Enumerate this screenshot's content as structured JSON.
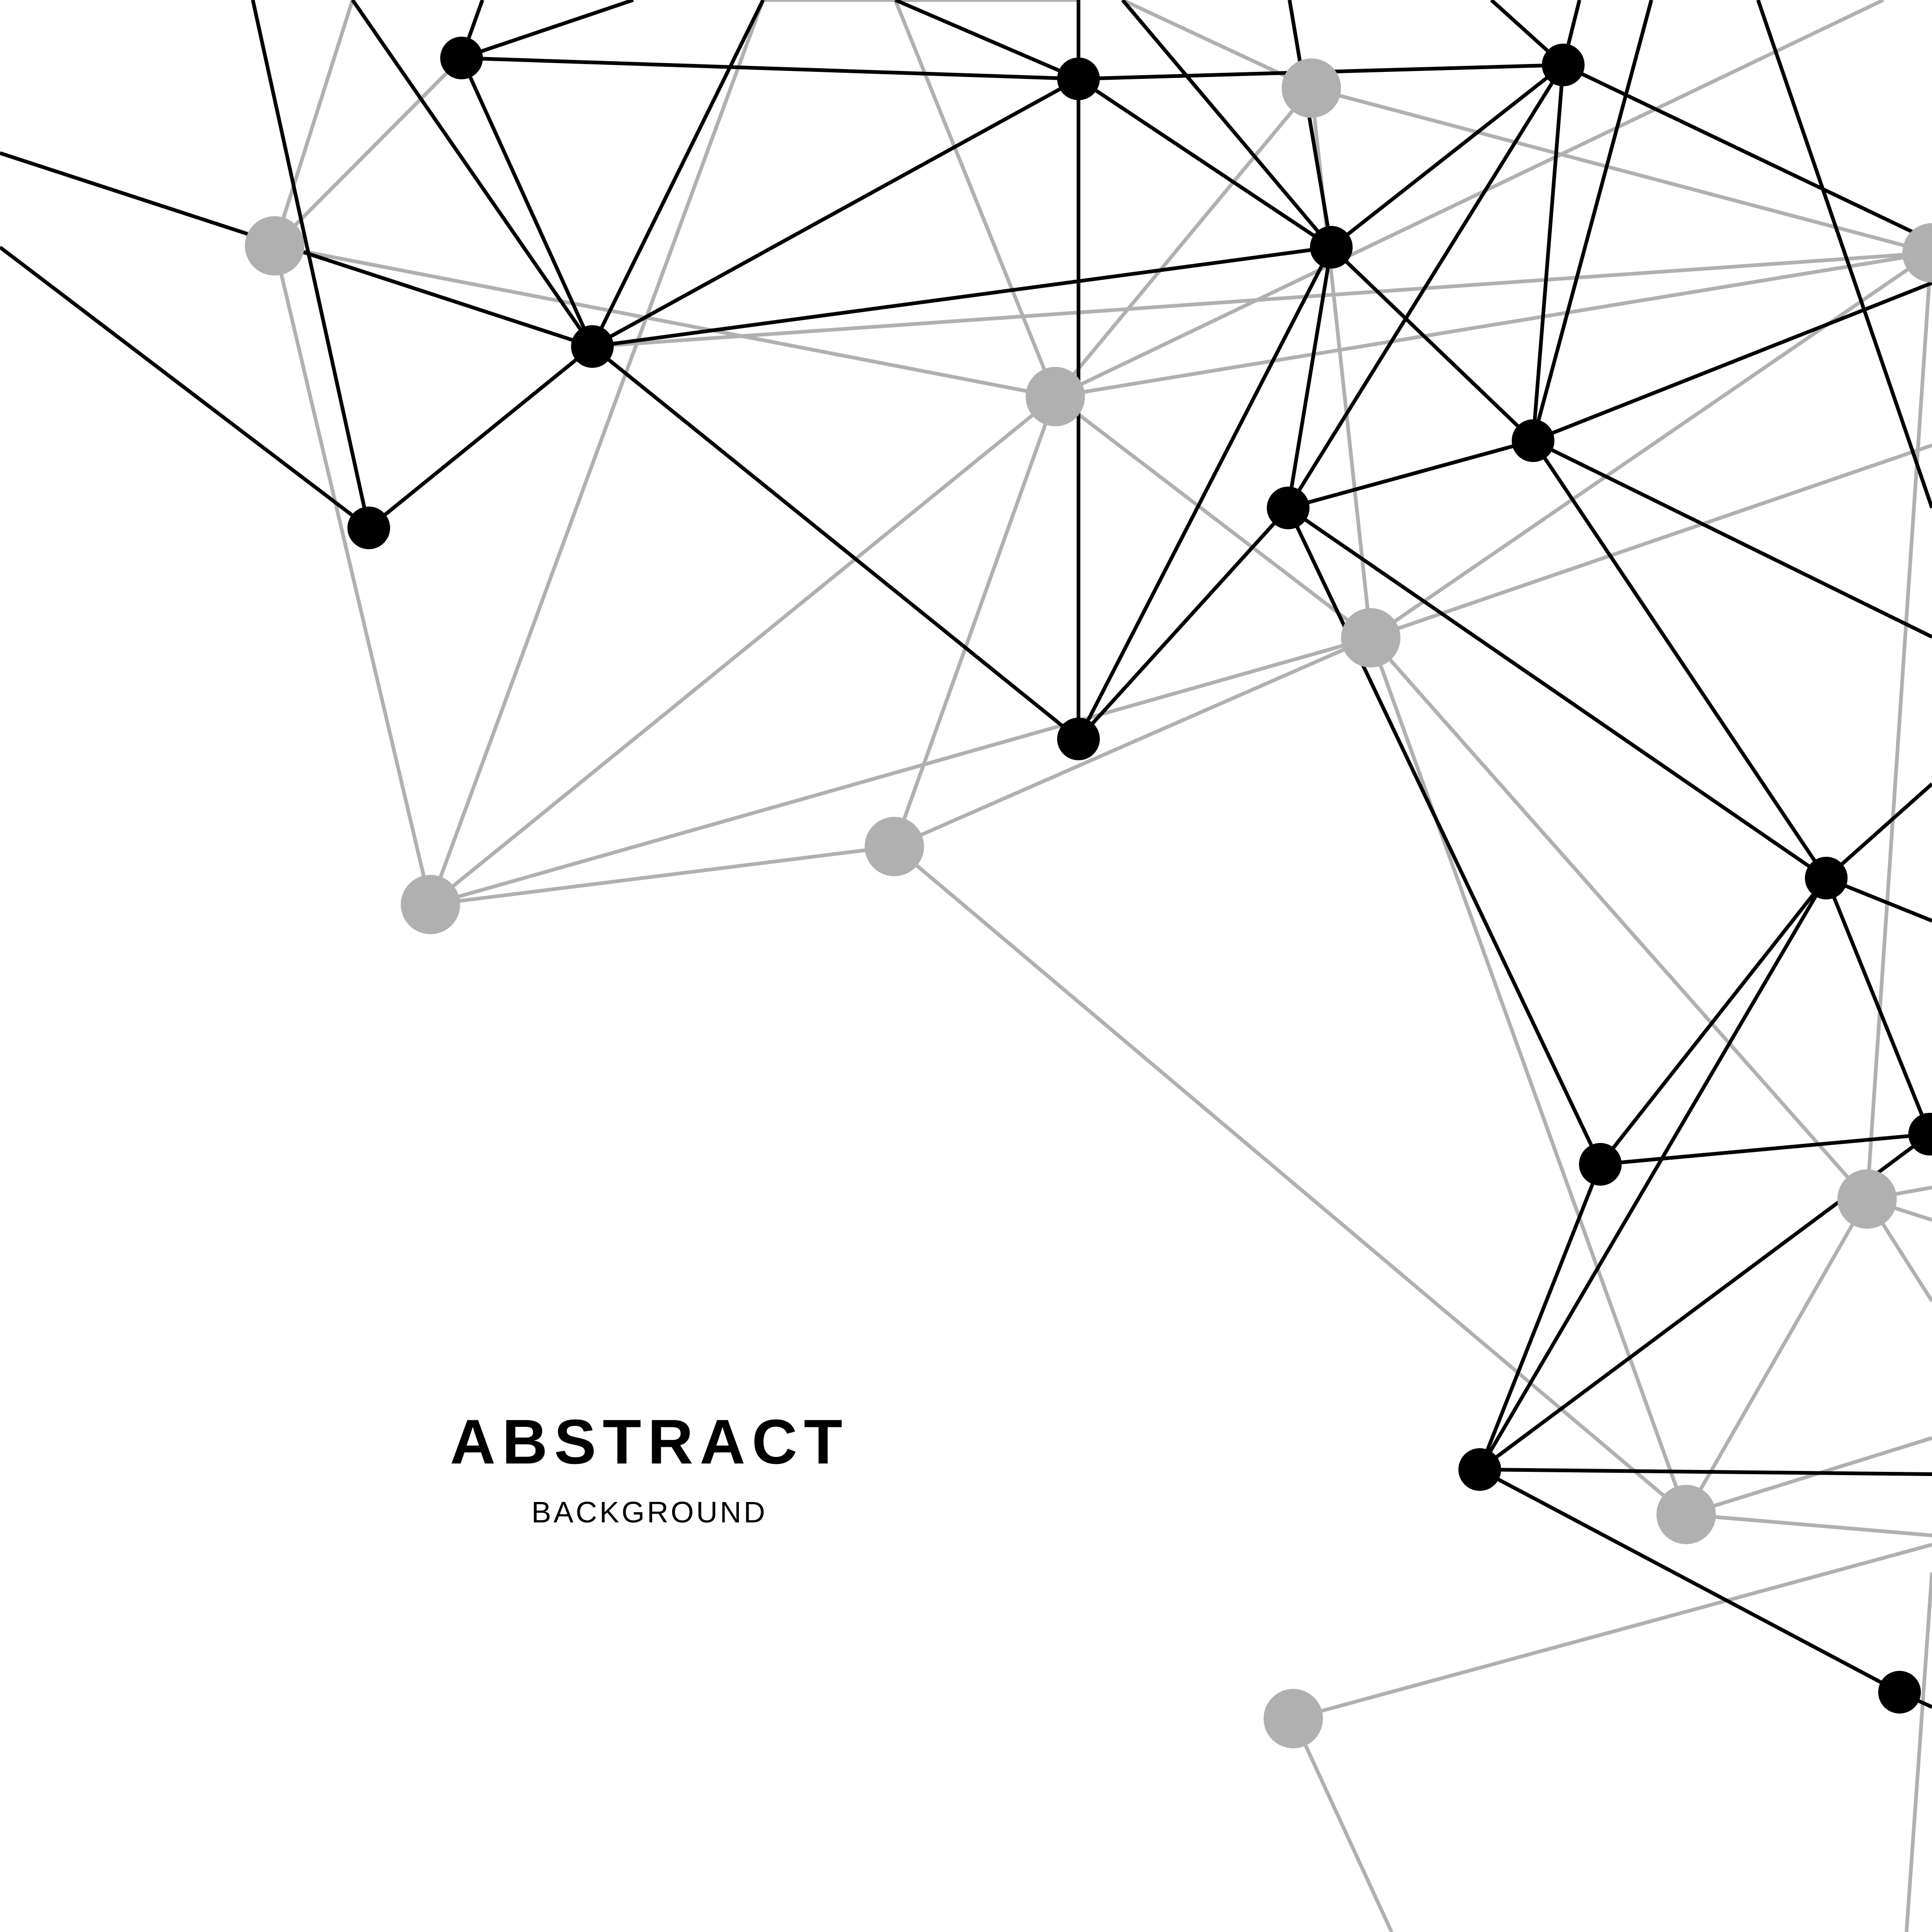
{
  "title": "ABSTRACT",
  "subtitle": "BACKGROUND",
  "colors": {
    "background": "#ffffff",
    "text": "#000000",
    "dark_network": "#000000",
    "light_network": "#b0b0b0"
  },
  "icons": [
    "network-node-dark",
    "network-node-light"
  ]
}
